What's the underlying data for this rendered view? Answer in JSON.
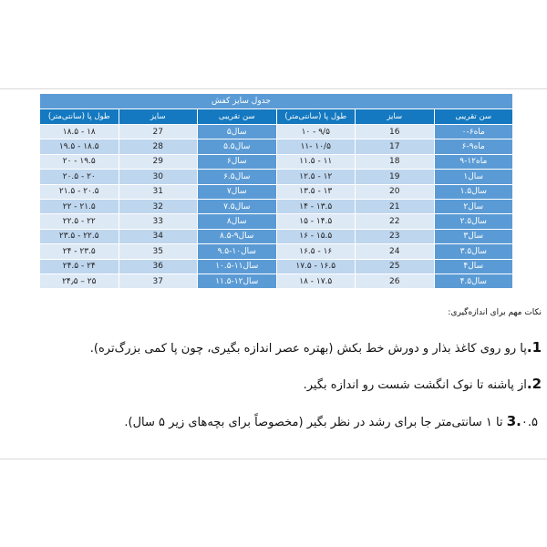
{
  "table": {
    "title": "جدول سایز کفش",
    "headers": [
      "طول پا (سانتی‌متر)",
      "سایز",
      "سن تقریبی",
      "طول پا (سانتی‌متر)",
      "سایز",
      "سن تقریبی"
    ],
    "rows": [
      {
        "l_len": "۱۸.۵ - ۱۸",
        "l_size": "27",
        "l_age": "۵سال",
        "r_len": "۱۰ - ۹/۵",
        "r_size": "16",
        "r_age": "۰-۶ماه"
      },
      {
        "l_len": "۱۹.۵ - ۱۸.۵",
        "l_size": "28",
        "l_age": "۵.۵سال",
        "r_len": "۱۱- ۱۰/۵",
        "r_size": "17",
        "r_age": "۶-۹ماه"
      },
      {
        "l_len": "۲۰ - ۱۹.۵",
        "l_size": "29",
        "l_age": "۶سال",
        "r_len": "۱۱.۵ - ۱۱",
        "r_size": "18",
        "r_age": "۹-۱۲ماه"
      },
      {
        "l_len": "۲۰.۵ - ۲۰",
        "l_size": "30",
        "l_age": "۶.۵سال",
        "r_len": "۱۲.۵ - ۱۲",
        "r_size": "19",
        "r_age": "۱سال"
      },
      {
        "l_len": "۲۱.۵ - ۲۰.۵",
        "l_size": "31",
        "l_age": "۷سال",
        "r_len": "۱۳.۵ - ۱۳",
        "r_size": "20",
        "r_age": "۱.۵سال"
      },
      {
        "l_len": "۲۲ - ۲۱.۵",
        "l_size": "32",
        "l_age": "۷.۵سال",
        "r_len": "۱۴ - ۱۳.۵",
        "r_size": "21",
        "r_age": "۲سال"
      },
      {
        "l_len": "۲۲.۵ - ۲۲",
        "l_size": "33",
        "l_age": "۸سال",
        "r_len": "۱۵ - ۱۴.۵",
        "r_size": "22",
        "r_age": "۲.۵سال"
      },
      {
        "l_len": "۲۳.۵ - ۲۲.۵",
        "l_size": "34",
        "l_age": "۸.۵-۹سال",
        "r_len": "۱۶ - ۱۵.۵",
        "r_size": "23",
        "r_age": "۳سال"
      },
      {
        "l_len": "۲۴ - ۲۳.۵",
        "l_size": "35",
        "l_age": "۹.۵-۱۰سال",
        "r_len": "۱۶.۵ - ۱۶",
        "r_size": "24",
        "r_age": "۳.۵سال"
      },
      {
        "l_len": "۲۴.۵ - ۲۴",
        "l_size": "36",
        "l_age": "۱۰.۵-۱۱سال",
        "r_len": "۱۷.۵ - ۱۶.۵",
        "r_size": "25",
        "r_age": "۴سال"
      },
      {
        "l_len": "۲۴٫۵ – ۲۵",
        "l_size": "37",
        "l_age": "۱۱.۵-۱۲سال",
        "r_len": "۱۸ - ۱۷.۵",
        "r_size": "26",
        "r_age": "۴.۵سال"
      }
    ]
  },
  "notes": {
    "heading": "نکات مهم برای اندازه‌گیری:",
    "items": [
      {
        "num": "1.",
        "text": "پا رو روی کاغذ بذار و دورش خط بکش (بهتره عصر اندازه بگیری، چون پا کمی بزرگ‌تره)."
      },
      {
        "num": "2.",
        "text": "از پاشنه تا نوک انگشت شست رو اندازه بگیر."
      },
      {
        "num": "3.",
        "text": "۰.۵ تا ۱ سانتی‌متر جا برای رشد در نظر بگیر (مخصوصاً برای بچه‌های زیر ۵ سال)."
      }
    ]
  }
}
